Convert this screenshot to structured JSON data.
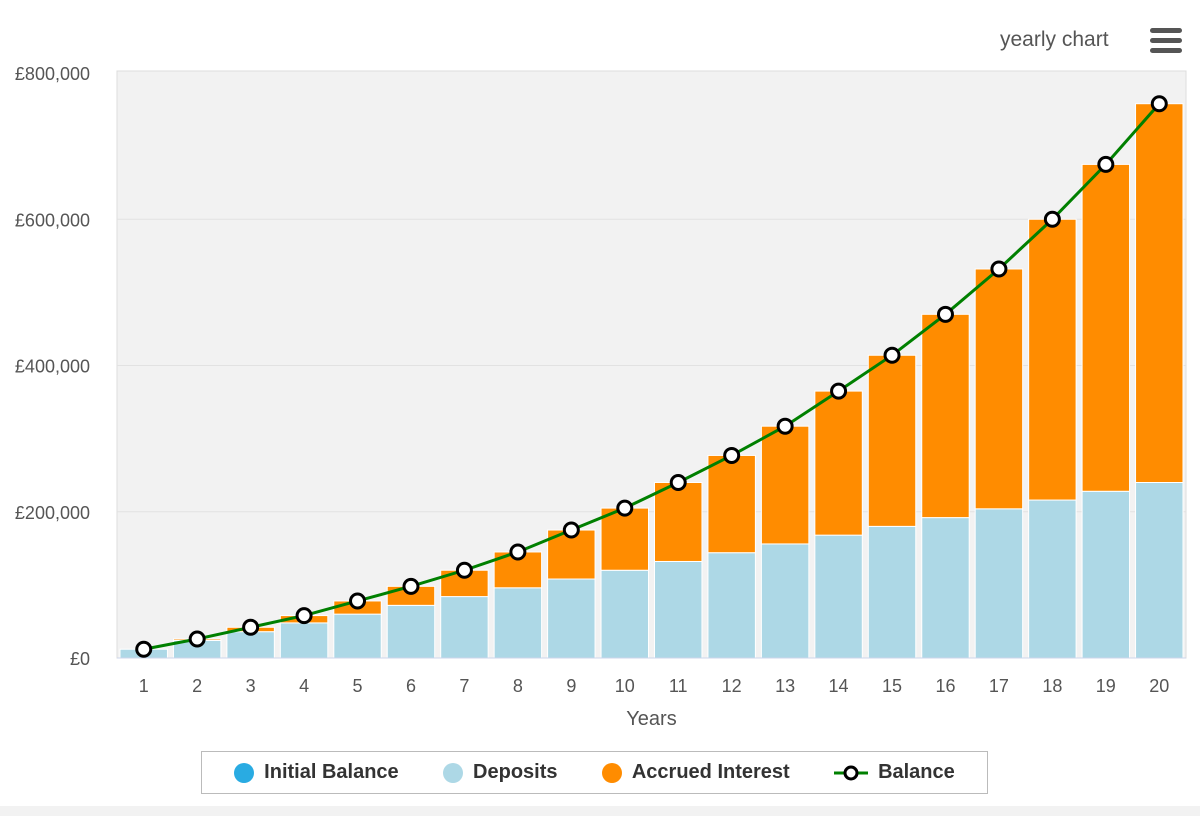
{
  "header": {
    "title": "yearly chart",
    "menu_icon": "hamburger-menu-icon"
  },
  "chart_data": {
    "type": "bar",
    "stacked": true,
    "xlabel": "Years",
    "ylabel": "",
    "categories": [
      "1",
      "2",
      "3",
      "4",
      "5",
      "6",
      "7",
      "8",
      "9",
      "10",
      "11",
      "12",
      "13",
      "14",
      "15",
      "16",
      "17",
      "18",
      "19",
      "20"
    ],
    "ylim": [
      0,
      800000
    ],
    "yticks": [
      "£0",
      "£200,000",
      "£400,000",
      "£600,000",
      "£800,000"
    ],
    "ytick_values": [
      0,
      200000,
      400000,
      600000,
      800000
    ],
    "grid": true,
    "legend_position": "bottom",
    "series": [
      {
        "name": "Initial Balance",
        "type": "bar",
        "color": "#29abe2",
        "values": [
          0,
          0,
          0,
          0,
          0,
          0,
          0,
          0,
          0,
          0,
          0,
          0,
          0,
          0,
          0,
          0,
          0,
          0,
          0,
          0
        ]
      },
      {
        "name": "Deposits",
        "type": "bar",
        "color": "#add8e6",
        "values": [
          12000,
          24000,
          36000,
          48000,
          60000,
          72000,
          84000,
          96000,
          108000,
          120000,
          132000,
          144000,
          156000,
          168000,
          180000,
          192000,
          204000,
          216000,
          228000,
          240000
        ]
      },
      {
        "name": "Accrued Interest",
        "type": "bar",
        "color": "#ff8c00",
        "values": [
          0,
          2000,
          6000,
          10000,
          18000,
          26000,
          36000,
          49000,
          67000,
          85000,
          108000,
          133000,
          161000,
          197000,
          234000,
          278000,
          328000,
          384000,
          447000,
          518000
        ]
      },
      {
        "name": "Balance",
        "type": "line",
        "color": "#008000",
        "values": [
          12000,
          26000,
          42000,
          58000,
          78000,
          98000,
          120000,
          145000,
          175000,
          205000,
          240000,
          277000,
          317000,
          365000,
          414000,
          470000,
          532000,
          600000,
          675000,
          758000
        ]
      }
    ]
  }
}
